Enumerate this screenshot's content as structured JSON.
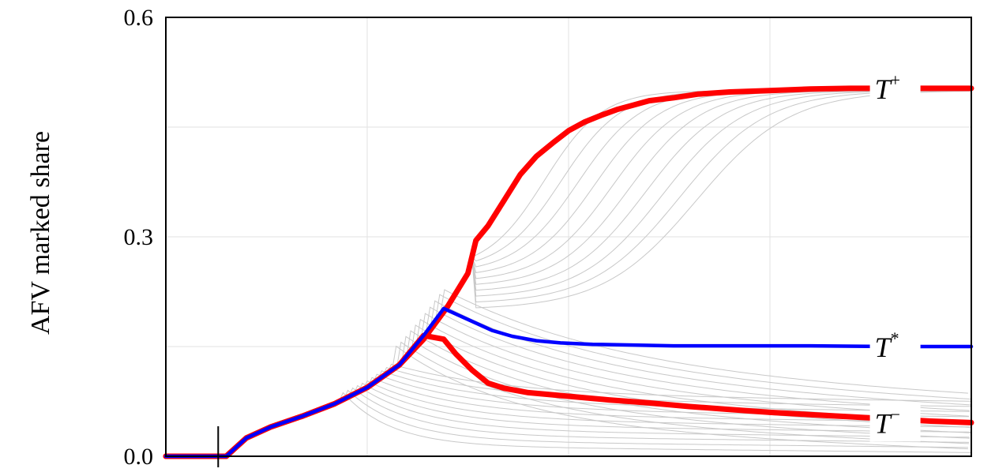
{
  "chart_data": {
    "type": "line",
    "ylabel": "AFV marked share",
    "xlabel": "",
    "ylim": [
      0,
      0.6
    ],
    "xlim": [
      0,
      100
    ],
    "yticks": [
      "0.0",
      "0.3",
      "0.6"
    ],
    "ytick_values": [
      0,
      0.3,
      0.6
    ],
    "grid": true,
    "marker_x": 6.5,
    "series": [
      {
        "name": "T",
        "superscript": "+",
        "color": "#ff0000",
        "x": [
          0,
          7.5,
          8.5,
          10,
          13,
          17,
          21,
          25,
          29,
          32,
          35,
          37.5,
          38.5,
          40,
          42,
          44,
          46,
          48,
          50,
          52,
          54,
          56,
          58,
          60,
          63,
          66,
          70,
          75,
          80,
          85,
          90,
          95,
          100
        ],
        "y": [
          0,
          0,
          0.01,
          0.025,
          0.04,
          0.055,
          0.072,
          0.094,
          0.125,
          0.16,
          0.205,
          0.25,
          0.295,
          0.315,
          0.35,
          0.385,
          0.41,
          0.428,
          0.445,
          0.457,
          0.466,
          0.474,
          0.48,
          0.486,
          0.49,
          0.495,
          0.498,
          0.5,
          0.502,
          0.503,
          0.503,
          0.503,
          0.503
        ]
      },
      {
        "name": "T",
        "superscript": "*",
        "color": "#0000ff",
        "x": [
          0,
          7.5,
          8.5,
          10,
          13,
          17,
          21,
          25,
          29,
          32,
          34.5,
          38.5,
          40.5,
          43,
          46,
          49,
          53,
          58,
          63,
          70,
          80,
          90,
          100
        ],
        "y": [
          0,
          0,
          0.01,
          0.025,
          0.04,
          0.055,
          0.072,
          0.094,
          0.125,
          0.165,
          0.202,
          0.182,
          0.172,
          0.164,
          0.158,
          0.155,
          0.153,
          0.152,
          0.151,
          0.151,
          0.151,
          0.15,
          0.15
        ]
      },
      {
        "name": "T",
        "superscript": "−",
        "color": "#ff0000",
        "x": [
          0,
          7.5,
          8.5,
          10,
          13,
          17,
          21,
          25,
          29,
          32,
          34.5,
          36,
          38,
          40,
          42,
          45,
          50,
          55,
          60,
          65,
          70,
          75,
          80,
          85,
          90,
          95,
          100
        ],
        "y": [
          0,
          0,
          0.01,
          0.025,
          0.04,
          0.055,
          0.072,
          0.094,
          0.125,
          0.165,
          0.16,
          0.14,
          0.118,
          0.1,
          0.093,
          0.087,
          0.082,
          0.077,
          0.073,
          0.068,
          0.064,
          0.06,
          0.057,
          0.054,
          0.051,
          0.048,
          0.046
        ]
      }
    ]
  }
}
